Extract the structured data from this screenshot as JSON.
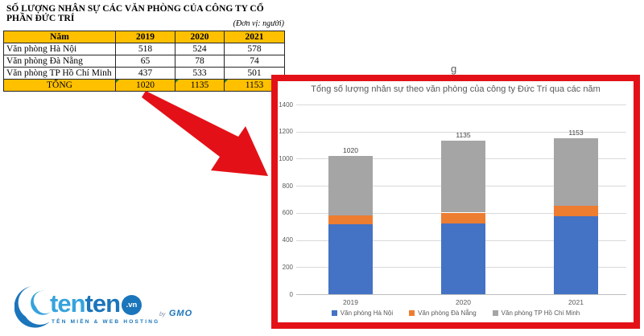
{
  "table_section": {
    "title": "SỐ LƯỢNG NHÂN SỰ CÁC VĂN PHÒNG CỦA CÔNG TY CỔ PHẦN ĐỨC TRÍ",
    "unit_note": "(Đơn vị: người)",
    "columns": [
      "Năm",
      "2019",
      "2020",
      "2021"
    ],
    "rows": [
      {
        "label": "Văn phòng Hà Nội",
        "values": [
          "518",
          "524",
          "578"
        ]
      },
      {
        "label": "Văn phòng Đà Nẵng",
        "values": [
          "65",
          "78",
          "74"
        ]
      },
      {
        "label": "Văn phòng TP Hồ Chí Minh",
        "values": [
          "437",
          "533",
          "501"
        ]
      }
    ],
    "total_row": {
      "label": "TỔNG",
      "values": [
        "1020",
        "1135",
        "1153"
      ]
    }
  },
  "chart_data": {
    "type": "bar",
    "stacked": true,
    "title": "Tổng số lượng nhân sự theo văn phòng của công ty Đức Trí qua các năm",
    "categories": [
      "2019",
      "2020",
      "2021"
    ],
    "series": [
      {
        "name": "Văn phòng Hà Nội",
        "color": "#4472C4",
        "values": [
          518,
          524,
          578
        ]
      },
      {
        "name": "Văn phòng Đà Nẵng",
        "color": "#ED7D31",
        "values": [
          65,
          78,
          74
        ]
      },
      {
        "name": "Văn phòng TP Hồ Chí Minh",
        "color": "#A5A5A5",
        "values": [
          437,
          533,
          501
        ]
      }
    ],
    "totals": [
      1020,
      1135,
      1153
    ],
    "xlabel": "",
    "ylabel": "",
    "ylim": [
      0,
      1400
    ],
    "yticks": [
      0,
      200,
      400,
      600,
      800,
      1000,
      1200,
      1400
    ],
    "grid": true,
    "legend_position": "bottom"
  },
  "annotations": {
    "cropped_letter": "g"
  },
  "logo": {
    "brand_light": "ten",
    "brand_dark": "ten",
    "tld": ".vn",
    "by": "by",
    "gmo": "GMO",
    "tagline": "TÊN MIỀN & WEB HOSTING"
  },
  "colors": {
    "accent_red": "#E31117",
    "header_yellow": "#FFC000",
    "axis_text": "#595959",
    "gridline": "#D9D9D9",
    "excel_green": "#1E7B34",
    "logo_light_blue": "#36A3DC",
    "logo_dark_blue": "#1B75BB"
  }
}
